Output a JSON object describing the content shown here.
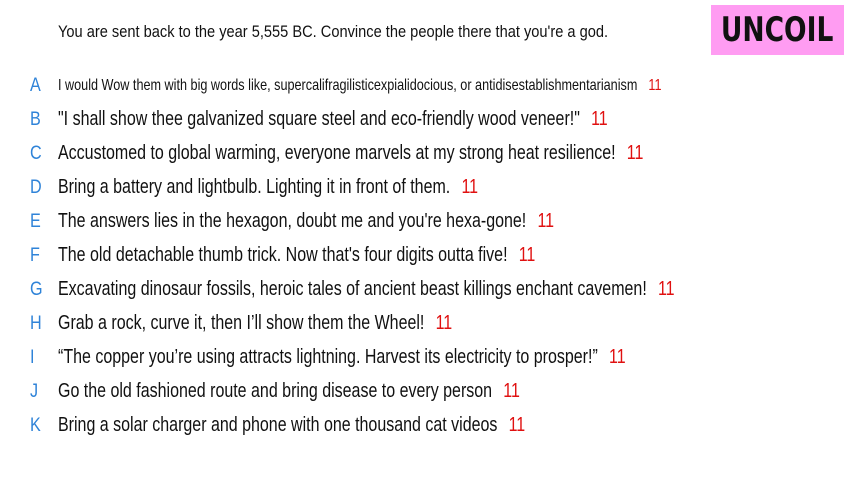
{
  "prompt": "You are sent back to the year 5,555 BC. Convince the people there that you're a god.",
  "logo": "UNCOIL",
  "colors": {
    "letter": "#2f83d8",
    "score": "#e01010",
    "logo_bg": "#ff9cf2"
  },
  "answers": [
    {
      "letter": "A",
      "text": "I would Wow them with big words like, supercalifragilisticexpialidocious, or antidisestablishmentarianism",
      "score": "11"
    },
    {
      "letter": "B",
      "text": "\"I shall show thee galvanized square steel and eco-friendly wood veneer!\"",
      "score": "11"
    },
    {
      "letter": "C",
      "text": "Accustomed to global warming, everyone marvels at my strong heat resilience!",
      "score": "11"
    },
    {
      "letter": "D",
      "text": "Bring a battery and lightbulb. Lighting it in front of them.",
      "score": "11"
    },
    {
      "letter": "E",
      "text": "The answers lies in the hexagon, doubt me and you're hexa-gone!",
      "score": "11"
    },
    {
      "letter": "F",
      "text": "The old detachable thumb trick. Now that's four digits outta five!",
      "score": "11"
    },
    {
      "letter": "G",
      "text": "Excavating dinosaur fossils, heroic tales of ancient beast killings enchant cavemen!",
      "score": "11"
    },
    {
      "letter": "H",
      "text": "Grab a rock, curve it, then I’ll show them the Wheel!",
      "score": "11"
    },
    {
      "letter": "I",
      "text": "“The copper you’re using attracts lightning. Harvest its electricity to prosper!”",
      "score": "11"
    },
    {
      "letter": "J",
      "text": "Go the old fashioned route and bring disease to every person",
      "score": "11"
    },
    {
      "letter": "K",
      "text": "Bring a solar charger and phone with one thousand cat videos",
      "score": "11"
    }
  ]
}
